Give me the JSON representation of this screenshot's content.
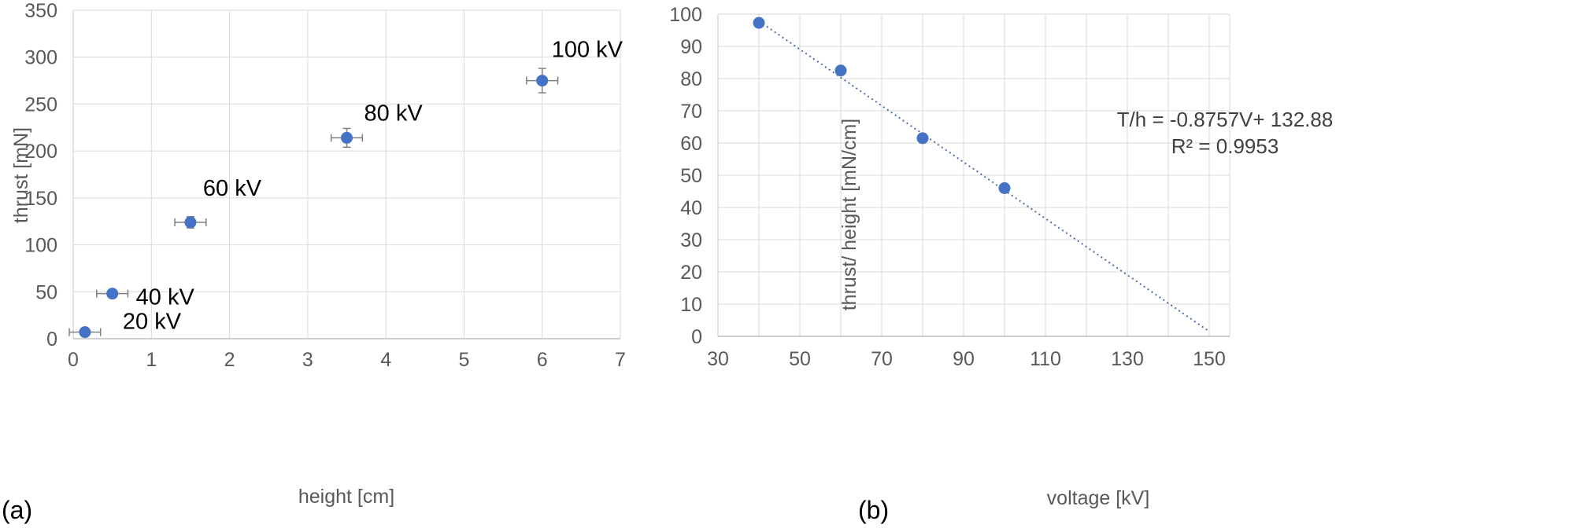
{
  "colors": {
    "marker": "#4472C4",
    "grid": "#d9d9d9",
    "text": "#595959",
    "error_bar": "#7f7f7f",
    "trendline": "#4a6fa5"
  },
  "chart_data": [
    {
      "type": "scatter",
      "panel_label": "(a)",
      "xlabel": "height [cm]",
      "ylabel": "thrust [mN]",
      "xlim": [
        0,
        7
      ],
      "ylim": [
        0,
        350
      ],
      "x_ticks": [
        "0",
        "1",
        "2",
        "3",
        "4",
        "5",
        "6",
        "7"
      ],
      "y_ticks": [
        "0",
        "50",
        "100",
        "150",
        "200",
        "250",
        "300",
        "350"
      ],
      "grid": true,
      "series": [
        {
          "x": [
            0.15,
            0.5,
            1.5,
            3.5,
            6.0
          ],
          "y": [
            7,
            48,
            124,
            214,
            275
          ],
          "x_err": [
            0.2,
            0.2,
            0.2,
            0.2,
            0.2
          ],
          "y_err": [
            3,
            3,
            6,
            10,
            13
          ],
          "point_labels": [
            "20 kV",
            "40 kV",
            "60 kV",
            "80 kV",
            "100 kV"
          ]
        }
      ]
    },
    {
      "type": "scatter",
      "panel_label": "(b)",
      "xlabel": "voltage [kV]",
      "ylabel": "thrust/ height [mN/cm]",
      "xlim": [
        30,
        155
      ],
      "ylim": [
        0,
        100
      ],
      "x_ticks": [
        "30",
        "50",
        "70",
        "90",
        "110",
        "130",
        "150"
      ],
      "y_ticks": [
        "0",
        "10",
        "20",
        "30",
        "40",
        "50",
        "60",
        "70",
        "80",
        "90",
        "100"
      ],
      "grid": true,
      "series": [
        {
          "x": [
            40,
            60,
            80,
            100
          ],
          "y": [
            97.3,
            82.5,
            61.5,
            46
          ]
        }
      ],
      "trendline": {
        "slope": -0.8757,
        "intercept": 132.88,
        "x_range": [
          40,
          150
        ]
      },
      "annotations": [
        "T/h = -0.8757V+ 132.88",
        "R² = 0.9953"
      ]
    }
  ]
}
